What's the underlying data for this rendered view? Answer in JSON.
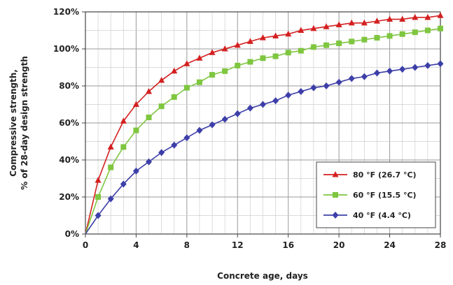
{
  "chart_data": {
    "type": "line",
    "xlabel": "Concrete age, days",
    "ylabel_lines": [
      "Compressive strength,",
      "% of 28-day design strength"
    ],
    "xlim": [
      0,
      28
    ],
    "ylim": [
      0,
      120
    ],
    "x_ticks": [
      0,
      4,
      8,
      12,
      16,
      20,
      24,
      28
    ],
    "x_tick_labels": [
      "0",
      "4",
      "8",
      "12",
      "16",
      "20",
      "24",
      "28"
    ],
    "y_ticks": [
      0,
      20,
      40,
      60,
      80,
      100,
      120
    ],
    "y_tick_labels": [
      "0%",
      "20%",
      "40%",
      "60%",
      "80%",
      "100%",
      "120%"
    ],
    "grid": true,
    "legend_position": "bottom-right",
    "x": [
      0,
      1,
      2,
      3,
      4,
      5,
      6,
      7,
      8,
      9,
      10,
      11,
      12,
      13,
      14,
      15,
      16,
      17,
      18,
      19,
      20,
      21,
      22,
      23,
      24,
      25,
      26,
      27,
      28
    ],
    "series": [
      {
        "name": "80 °F (26.7 °C)",
        "color": "#d42020",
        "marker": "triangle",
        "values": [
          0,
          29,
          47,
          61,
          70,
          77,
          83,
          88,
          92,
          95,
          98,
          100,
          102,
          104,
          106,
          107,
          108,
          110,
          111,
          112,
          113,
          114,
          114,
          115,
          116,
          116,
          117,
          117,
          118
        ]
      },
      {
        "name": "60 °F (15.5 °C)",
        "color": "#7ec63f",
        "marker": "square",
        "values": [
          0,
          20,
          36,
          47,
          56,
          63,
          69,
          74,
          79,
          82,
          86,
          88,
          91,
          93,
          95,
          96,
          98,
          99,
          101,
          102,
          103,
          104,
          105,
          106,
          107,
          108,
          109,
          110,
          111
        ]
      },
      {
        "name": "40 °F (4.4 °C)",
        "color": "#3d3fa8",
        "marker": "diamond",
        "values": [
          0,
          10,
          19,
          27,
          34,
          39,
          44,
          48,
          52,
          56,
          59,
          62,
          65,
          68,
          70,
          72,
          75,
          77,
          79,
          80,
          82,
          84,
          85,
          87,
          88,
          89,
          90,
          91,
          92
        ]
      }
    ]
  }
}
